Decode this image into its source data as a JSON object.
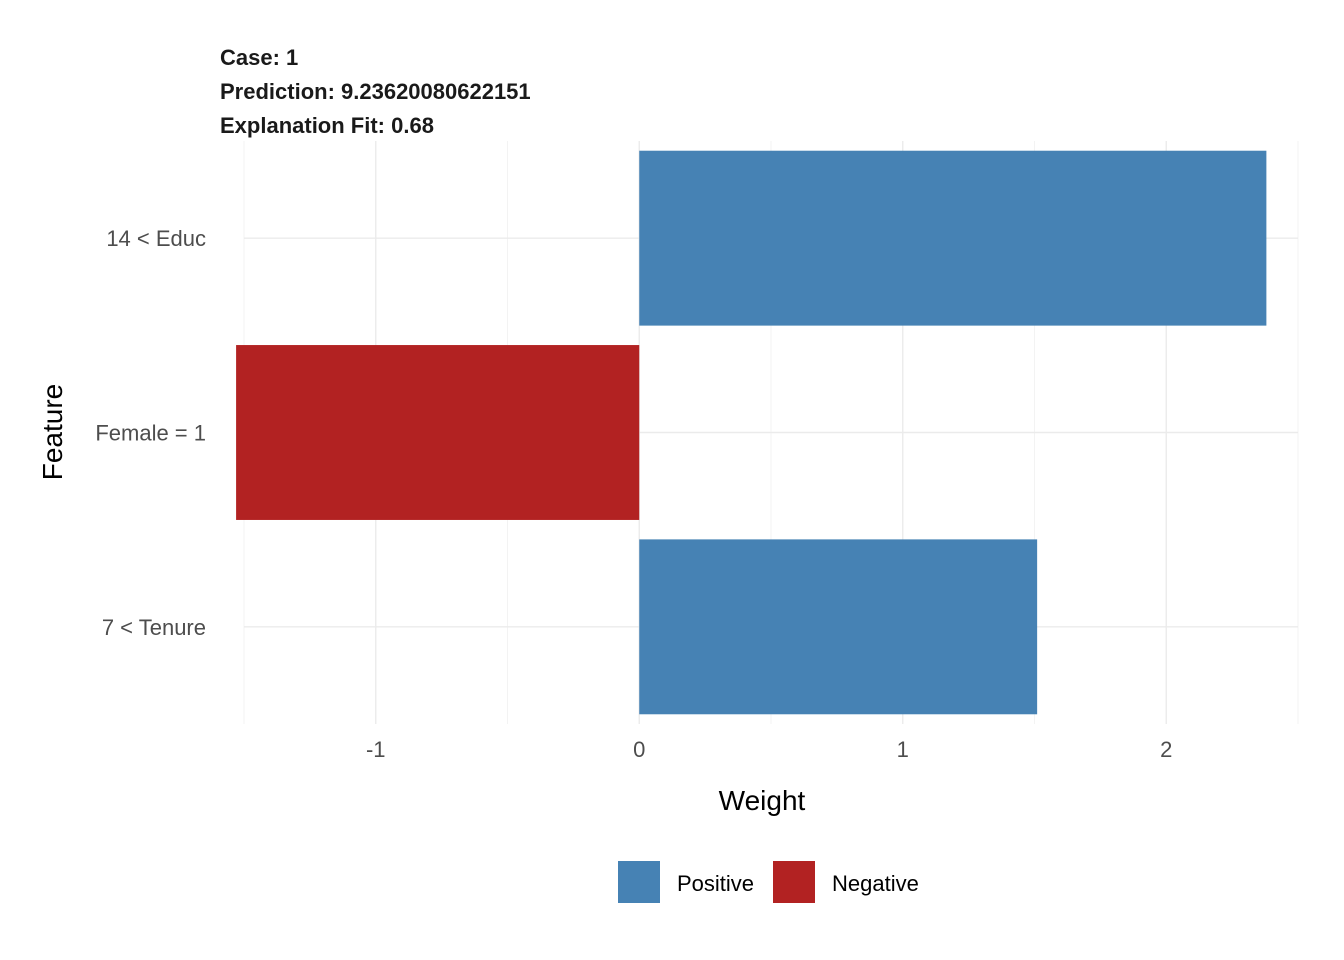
{
  "chart_data": {
    "type": "bar",
    "orientation": "horizontal",
    "title_lines": [
      "Case: 1",
      "Prediction: 9.23620080622151",
      "Explanation Fit: 0.68"
    ],
    "xlabel": "Weight",
    "ylabel": "Feature",
    "xlim": [
      -1.5,
      2.5
    ],
    "x_ticks": [
      -1,
      0,
      1,
      2
    ],
    "x_tick_labels": [
      "-1",
      "0",
      "1",
      "2"
    ],
    "grid": true,
    "categories": [
      "14 < Educ",
      "Female = 1",
      "7 < Tenure"
    ],
    "values": [
      2.38,
      -1.53,
      1.51
    ],
    "bar_sign": [
      "Positive",
      "Negative",
      "Positive"
    ],
    "legend": {
      "position": "bottom",
      "entries": [
        {
          "label": "Positive",
          "color": "#4682B4"
        },
        {
          "label": "Negative",
          "color": "#B22222"
        }
      ]
    }
  }
}
